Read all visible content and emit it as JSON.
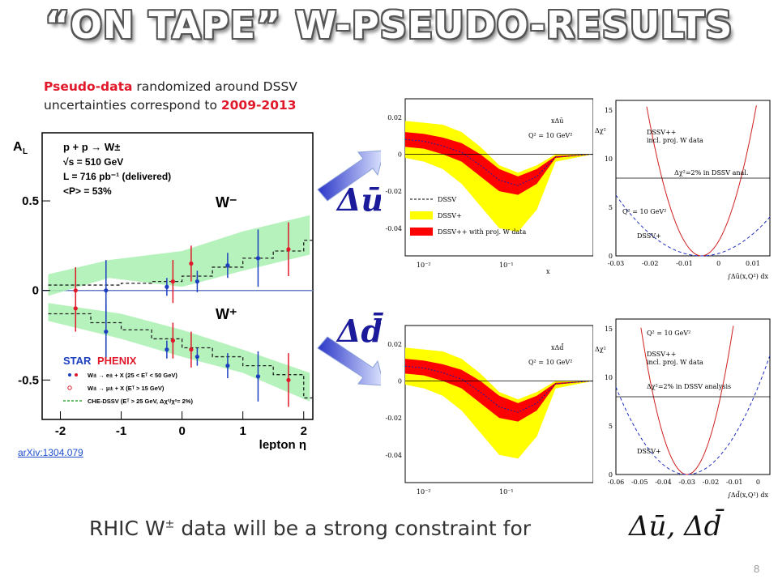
{
  "title": "“ON TAPE” W-PSEUDO-RESULTS",
  "note": {
    "pseudo": "Pseudo-data",
    "line1_rest": " randomized around DSSV",
    "line2": "uncertainties correspond to ",
    "years": "2009-2013"
  },
  "arxiv": "arXiv:1304.079",
  "bottom_text": "RHIC W",
  "bottom_sup": "±",
  "bottom_rest": " data will be a strong constraint for",
  "formula": "Δū, Δd̄",
  "page_number": "8",
  "arrows": {
    "upper_label": "Δū",
    "lower_label": "Δd̄"
  },
  "chart_data": [
    {
      "type": "scatter",
      "ylabel": "A",
      "ylabel_sub": "L",
      "xlabel": "lepton η",
      "x_ticks": [
        "-2",
        "-1",
        "0",
        "1",
        "2"
      ],
      "y_ticks": [
        "0.5",
        "0",
        "-0.5"
      ],
      "xlim": [
        -2.3,
        2.15
      ],
      "ylim": [
        -0.72,
        0.88
      ],
      "header": {
        "process": "p + p → W±",
        "sqrt_s": "√s = 510 GeV",
        "lumi": "L = 716 pb⁻¹ (delivered)",
        "pol": "<P> = 53%"
      },
      "labels": {
        "wminus": "W⁻",
        "wplus": "W⁺"
      },
      "legend": {
        "star": "STAR",
        "phenix": "PHENIX",
        "row1": "W± → e± + X  (25 < Eᵀ < 50 GeV)",
        "row2": "W± → μ± + X  (Eᵀ > 15 GeV)",
        "row3": "CHE-DSSV (Eᵀ > 25 GeV, Δχ²/χ²= 2%)"
      },
      "series": [
        {
          "name": "STAR",
          "color": "#1c3fbf",
          "wminus": [
            [
              -1.25,
              0.0,
              0.17
            ],
            [
              -0.25,
              0.02,
              0.05
            ],
            [
              0.25,
              0.05,
              0.06
            ],
            [
              0.75,
              0.14,
              0.07
            ],
            [
              1.25,
              0.18,
              0.16
            ]
          ],
          "wplus": [
            [
              -1.25,
              -0.23,
              0.15
            ],
            [
              -0.25,
              -0.33,
              0.05
            ],
            [
              0.25,
              -0.37,
              0.05
            ],
            [
              0.75,
              -0.42,
              0.07
            ],
            [
              1.25,
              -0.48,
              0.14
            ]
          ]
        },
        {
          "name": "PHENIX",
          "color": "#e0182a",
          "wminus": [
            [
              -1.75,
              0.0,
              0.13
            ],
            [
              -0.15,
              0.05,
              0.12
            ],
            [
              0.15,
              0.15,
              0.1
            ],
            [
              1.75,
              0.23,
              0.15
            ]
          ],
          "wplus": [
            [
              -1.75,
              -0.1,
              0.13
            ],
            [
              -0.15,
              -0.28,
              0.1
            ],
            [
              0.15,
              -0.33,
              0.1
            ],
            [
              1.75,
              -0.5,
              0.15
            ]
          ]
        }
      ],
      "theory_wminus_step": [
        [
          -2.2,
          0.03
        ],
        [
          -1.5,
          0.03
        ],
        [
          -1.0,
          0.04
        ],
        [
          -0.5,
          0.05
        ],
        [
          0.0,
          0.08
        ],
        [
          0.5,
          0.13
        ],
        [
          1.0,
          0.18
        ],
        [
          1.5,
          0.22
        ],
        [
          2.0,
          0.28
        ],
        [
          2.15,
          0.28
        ]
      ],
      "theory_wplus_step": [
        [
          -2.2,
          -0.13
        ],
        [
          -1.5,
          -0.18
        ],
        [
          -1.0,
          -0.22
        ],
        [
          -0.5,
          -0.27
        ],
        [
          0.0,
          -0.32
        ],
        [
          0.5,
          -0.37
        ],
        [
          1.0,
          -0.42
        ],
        [
          1.5,
          -0.47
        ],
        [
          2.0,
          -0.6
        ],
        [
          2.15,
          -0.6
        ]
      ]
    },
    {
      "type": "area",
      "name": "delta-ubar-band",
      "annot": "xΔū",
      "q2": "Q² = 10 GeV²",
      "xlabel": "x",
      "x_ticks": [
        "10⁻²",
        "10⁻¹"
      ],
      "y_ticks": [
        "0.02",
        "0",
        "-0.02",
        "-0.04"
      ],
      "ylim": [
        -0.055,
        0.03
      ],
      "legend": [
        "DSSV",
        "DSSV+",
        "DSSV++ with proj. W data"
      ],
      "colors": {
        "outer": "#ffff00",
        "inner": "#ff0000"
      }
    },
    {
      "type": "line",
      "name": "delta-ubar-chi2",
      "ylabel": "Δχ²",
      "x_ticks": [
        "-0.03",
        "-0.02",
        "-0.01",
        "0",
        "0.01"
      ],
      "y_ticks": [
        "15",
        "10",
        "5",
        "0"
      ],
      "xlim": [
        -0.03,
        0.015
      ],
      "ylim": [
        0,
        16
      ],
      "labels": [
        "DSSV++",
        "incl. proj. W data",
        "Δχ²=2% in DSSV anal.",
        "Q² = 10 GeV²",
        "DSSV+"
      ],
      "xlabel": "∫Δū(x,Q²) dx"
    },
    {
      "type": "area",
      "name": "delta-dbar-band",
      "annot": "xΔd̄",
      "q2": "Q² = 10 GeV²",
      "xlabel": "x",
      "x_ticks": [
        "10⁻²",
        "10⁻¹"
      ],
      "y_ticks": [
        "0.02",
        "0",
        "-0.02",
        "-0.04"
      ],
      "ylim": [
        -0.055,
        0.03
      ]
    },
    {
      "type": "line",
      "name": "delta-dbar-chi2",
      "ylabel": "Δχ²",
      "x_ticks": [
        "-0.06",
        "-0.05",
        "-0.04",
        "-0.03",
        "-0.02",
        "-0.01",
        "0"
      ],
      "y_ticks": [
        "15",
        "10",
        "5",
        "0"
      ],
      "xlim": [
        -0.06,
        0.005
      ],
      "ylim": [
        0,
        16
      ],
      "labels": [
        "Q² = 10 GeV²",
        "DSSV++",
        "incl. proj. W data",
        "Δχ²=2% in DSSV analysis",
        "DSSV+"
      ],
      "xlabel": "∫Δd̄(x,Q²) dx"
    }
  ]
}
